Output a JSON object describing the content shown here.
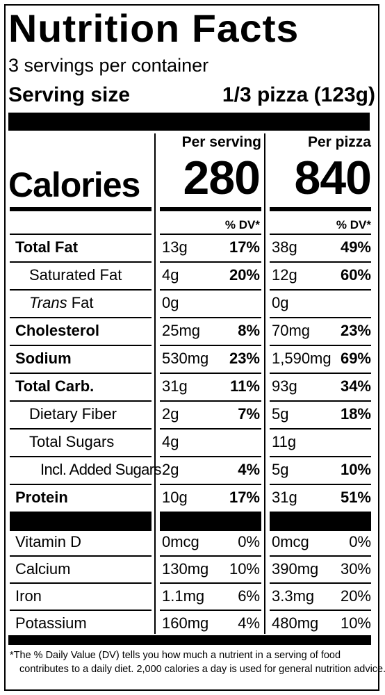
{
  "title": "Nutrition Facts",
  "servings_per_container": "3 servings per container",
  "serving_size_label": "Serving size",
  "serving_size_value": "1/3 pizza (123g)",
  "col1_header": "Per serving",
  "col2_header": "Per pizza",
  "calories_label": "Calories",
  "calories_serving": "280",
  "calories_pizza": "840",
  "dv_header": "% DV*",
  "nutrients": [
    {
      "name": "Total Fat",
      "s_amt": "13g",
      "s_dv": "17%",
      "p_amt": "38g",
      "p_dv": "49%"
    },
    {
      "name": "Saturated Fat",
      "s_amt": "4g",
      "s_dv": "20%",
      "p_amt": "12g",
      "p_dv": "60%"
    },
    {
      "name_italic": "Trans",
      "name": " Fat",
      "s_amt": "0g",
      "s_dv": "",
      "p_amt": "0g",
      "p_dv": ""
    },
    {
      "name": "Cholesterol",
      "s_amt": "25mg",
      "s_dv": "8%",
      "p_amt": "70mg",
      "p_dv": "23%"
    },
    {
      "name": "Sodium",
      "s_amt": "530mg",
      "s_dv": "23%",
      "p_amt": "1,590mg",
      "p_dv": "69%"
    },
    {
      "name": "Total Carb.",
      "s_amt": "31g",
      "s_dv": "11%",
      "p_amt": "93g",
      "p_dv": "34%"
    },
    {
      "name": "Dietary Fiber",
      "s_amt": "2g",
      "s_dv": "7%",
      "p_amt": "5g",
      "p_dv": "18%"
    },
    {
      "name": "Total Sugars",
      "s_amt": "4g",
      "s_dv": "",
      "p_amt": "11g",
      "p_dv": ""
    },
    {
      "name": "Incl. Added Sugars",
      "s_amt": "2g",
      "s_dv": "4%",
      "p_amt": "5g",
      "p_dv": "10%"
    },
    {
      "name": "Protein",
      "s_amt": "10g",
      "s_dv": "17%",
      "p_amt": "31g",
      "p_dv": "51%"
    }
  ],
  "vitamins": [
    {
      "name": "Vitamin D",
      "s_amt": "0mcg",
      "s_dv": "0%",
      "p_amt": "0mcg",
      "p_dv": "0%"
    },
    {
      "name": "Calcium",
      "s_amt": "130mg",
      "s_dv": "10%",
      "p_amt": "390mg",
      "p_dv": "30%"
    },
    {
      "name": "Iron",
      "s_amt": "1.1mg",
      "s_dv": "6%",
      "p_amt": "3.3mg",
      "p_dv": "20%"
    },
    {
      "name": "Potassium",
      "s_amt": "160mg",
      "s_dv": "4%",
      "p_amt": "480mg",
      "p_dv": "10%"
    }
  ],
  "footnote_line1": "*The % Daily Value (DV) tells you how much a nutrient in a serving of food",
  "footnote_line2": "contributes to a daily diet. 2,000 calories a day is used for general nutrition advice."
}
